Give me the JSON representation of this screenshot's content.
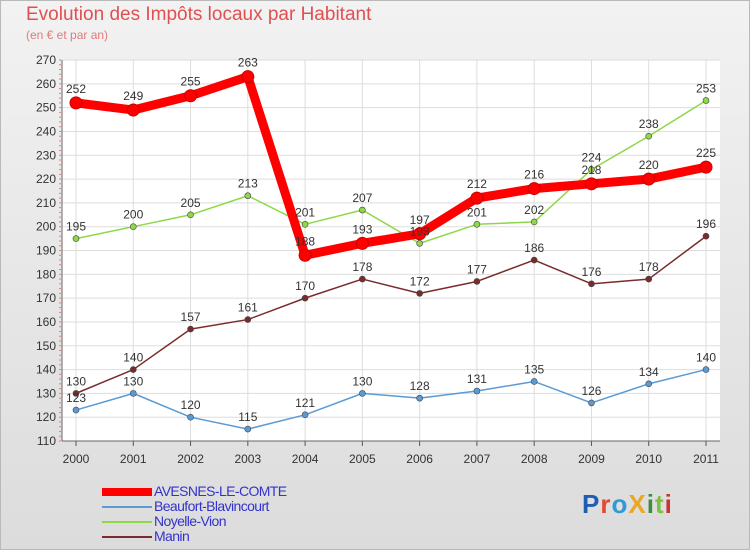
{
  "title": "Evolution des Impôts locaux par Habitant",
  "subtitle": "(en € et par an)",
  "logo": {
    "text": "ProXiti",
    "letters": [
      "P",
      "r",
      "o",
      "X",
      "i",
      "t",
      "i"
    ],
    "colors": [
      "#1e5fb4",
      "#e34a2d",
      "#2e9ad8",
      "#e9a825",
      "#3a8f3a",
      "#7cc142",
      "#cf3030"
    ]
  },
  "chart_data": {
    "type": "line",
    "title": "Evolution des Impôts locaux par Habitant",
    "ylabel": "(en € et par an)",
    "xlabel": "",
    "ylim": [
      110,
      270
    ],
    "yticks": [
      110,
      120,
      130,
      140,
      150,
      160,
      170,
      180,
      190,
      200,
      210,
      220,
      230,
      240,
      250,
      260,
      270
    ],
    "categories": [
      "2000",
      "2001",
      "2002",
      "2003",
      "2004",
      "2005",
      "2006",
      "2007",
      "2008",
      "2009",
      "2010",
      "2011"
    ],
    "grid": true,
    "legend_position": "bottom-left",
    "series": [
      {
        "name": "AVESNES-LE-COMTE",
        "color": "#ff0000",
        "thick": true,
        "values": [
          252,
          249,
          255,
          263,
          188,
          193,
          197,
          212,
          216,
          218,
          220,
          225
        ]
      },
      {
        "name": "Beaufort-Blavincourt",
        "color": "#5a9bd5",
        "thick": false,
        "values": [
          123,
          130,
          120,
          115,
          121,
          130,
          128,
          131,
          135,
          126,
          134,
          140
        ]
      },
      {
        "name": "Noyelle-Vion",
        "color": "#8ed848",
        "thick": false,
        "values": [
          195,
          200,
          205,
          213,
          201,
          207,
          193,
          201,
          202,
          224,
          238,
          253
        ]
      },
      {
        "name": "Manin",
        "color": "#7a2b2b",
        "thick": false,
        "values": [
          130,
          140,
          157,
          161,
          170,
          178,
          172,
          177,
          186,
          176,
          178,
          196
        ]
      }
    ]
  }
}
